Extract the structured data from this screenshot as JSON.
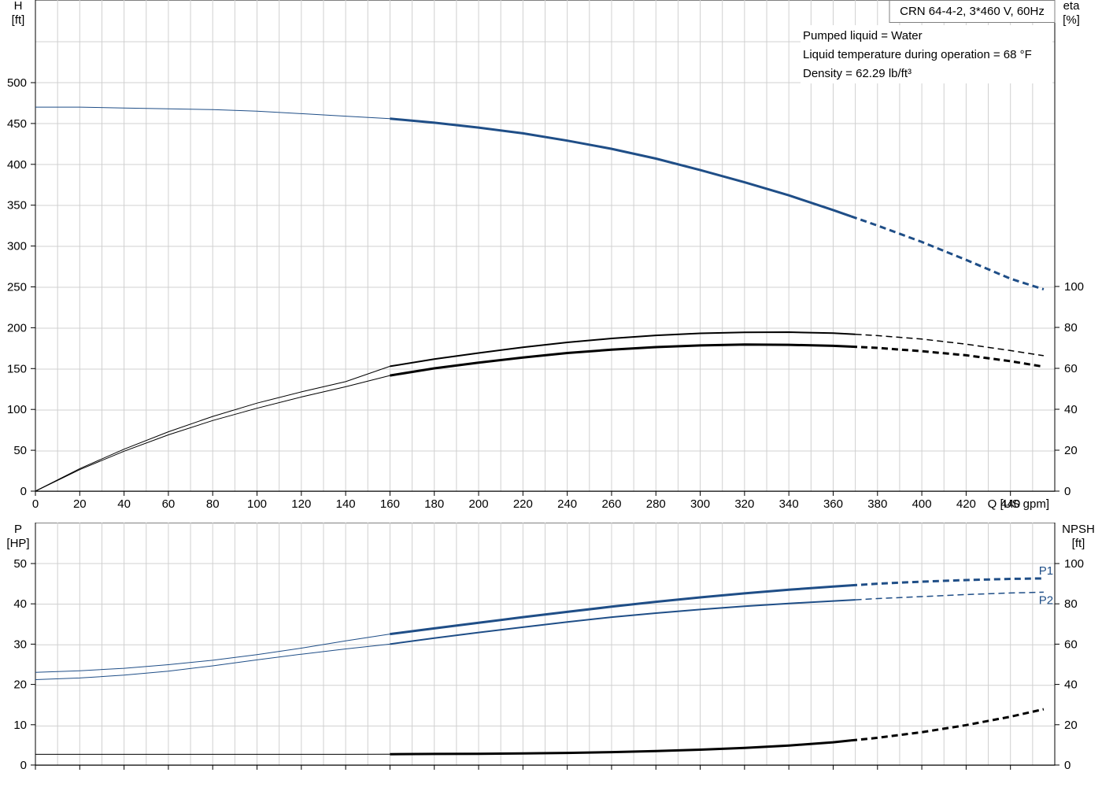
{
  "chart_data": [
    {
      "type": "line",
      "panel": "head-efficiency",
      "title": "CRN 64-4-2, 3*460 V, 60Hz",
      "annotations": [
        "Pumped liquid = Water",
        "Liquid temperature during operation = 68 °F",
        "Density = 62.29 lb/ft³"
      ],
      "xlabel": "Q [US gpm]",
      "xlim": [
        0,
        460
      ],
      "xticks": [
        0,
        20,
        40,
        60,
        80,
        100,
        120,
        140,
        160,
        180,
        200,
        220,
        240,
        260,
        280,
        300,
        320,
        340,
        360,
        380,
        400,
        420,
        440
      ],
      "ylabel_left": [
        "H",
        "[ft]"
      ],
      "ylim_left": [
        0,
        500
      ],
      "yticks_left": [
        0,
        50,
        100,
        150,
        200,
        250,
        300,
        350,
        400,
        450,
        500
      ],
      "ylabel_right": [
        "eta",
        "[%]"
      ],
      "ylim_right": [
        0,
        100
      ],
      "yticks_right": [
        0,
        20,
        40,
        60,
        80,
        100
      ],
      "grid": true,
      "colors": {
        "head": "#1f4e87",
        "eta": "#000000"
      },
      "series": [
        {
          "key": "head",
          "axis": "left",
          "color": "#1f4e87",
          "x": [
            0,
            20,
            40,
            60,
            80,
            100,
            120,
            140,
            160,
            180,
            200,
            220,
            240,
            260,
            280,
            300,
            320,
            340,
            360,
            380,
            400,
            420,
            440,
            455
          ],
          "y": [
            470,
            470,
            469,
            468,
            467,
            465,
            462,
            459,
            456,
            451,
            445,
            438,
            429,
            419,
            407,
            393,
            378,
            362,
            344,
            325,
            305,
            283,
            260,
            247
          ],
          "thin_until": 160,
          "dash_from": 368
        },
        {
          "key": "eta-upper",
          "axis": "right",
          "color": "#000000",
          "x": [
            0,
            20,
            40,
            60,
            80,
            100,
            120,
            140,
            160,
            180,
            200,
            220,
            240,
            260,
            280,
            300,
            320,
            340,
            360,
            380,
            400,
            420,
            440,
            455
          ],
          "y": [
            0,
            11,
            20.5,
            29,
            36.5,
            43,
            48.5,
            53.5,
            61,
            64.5,
            67.5,
            70.3,
            72.7,
            74.6,
            76.1,
            77.1,
            77.6,
            77.7,
            77.2,
            76.0,
            74.3,
            71.8,
            68.7,
            66.2
          ],
          "thin_until": 160,
          "dash_from": 370
        },
        {
          "key": "eta-lower",
          "axis": "right",
          "color": "#000000",
          "x": [
            0,
            20,
            40,
            60,
            80,
            100,
            120,
            140,
            160,
            180,
            200,
            220,
            240,
            260,
            280,
            300,
            320,
            340,
            360,
            380,
            400,
            420,
            440,
            455
          ],
          "y": [
            0,
            10.5,
            19.5,
            27.5,
            34.5,
            40.5,
            46,
            51,
            56.5,
            60,
            62.8,
            65.3,
            67.5,
            69.1,
            70.4,
            71.2,
            71.6,
            71.5,
            71.0,
            70.0,
            68.4,
            66.4,
            63.5,
            60.8
          ],
          "thin_until": 160,
          "dash_from": 368
        }
      ]
    },
    {
      "type": "line",
      "panel": "power-npsh",
      "xlim": [
        0,
        460
      ],
      "ylabel_left": [
        "P",
        "[HP]"
      ],
      "ylim_left": [
        0,
        50
      ],
      "yticks_left": [
        0,
        10,
        20,
        30,
        40,
        50
      ],
      "ylabel_right": [
        "NPSH",
        "[ft]"
      ],
      "ylim_right": [
        0,
        100
      ],
      "yticks_right": [
        0,
        20,
        40,
        60,
        80,
        100
      ],
      "grid": true,
      "colors": {
        "power": "#1f4e87",
        "npsh": "#000000"
      },
      "series": [
        {
          "key": "p1",
          "name": "P1",
          "axis": "left",
          "color": "#1f4e87",
          "x": [
            0,
            20,
            40,
            60,
            80,
            100,
            120,
            140,
            160,
            180,
            200,
            220,
            240,
            260,
            280,
            300,
            320,
            340,
            360,
            380,
            400,
            420,
            440,
            455
          ],
          "y": [
            23.0,
            23.4,
            24.0,
            24.9,
            26.0,
            27.4,
            29.0,
            30.8,
            32.5,
            33.9,
            35.3,
            36.7,
            38.0,
            39.3,
            40.5,
            41.6,
            42.6,
            43.5,
            44.3,
            45.0,
            45.5,
            45.9,
            46.2,
            46.3
          ],
          "thin_until": 160,
          "dash_from": 368
        },
        {
          "key": "p2",
          "name": "P2",
          "axis": "left",
          "color": "#1f4e87",
          "x": [
            0,
            20,
            40,
            60,
            80,
            100,
            120,
            140,
            160,
            180,
            200,
            220,
            240,
            260,
            280,
            300,
            320,
            340,
            360,
            380,
            400,
            420,
            440,
            455
          ],
          "y": [
            21.2,
            21.6,
            22.3,
            23.3,
            24.6,
            26.1,
            27.5,
            28.8,
            30.0,
            31.5,
            32.9,
            34.2,
            35.5,
            36.7,
            37.7,
            38.6,
            39.4,
            40.1,
            40.7,
            41.3,
            41.8,
            42.3,
            42.7,
            42.9
          ],
          "thin_until": 160,
          "dash_from": 370
        },
        {
          "key": "npsh",
          "axis": "right",
          "color": "#000000",
          "x": [
            0,
            40,
            80,
            120,
            140,
            160,
            180,
            200,
            220,
            240,
            260,
            280,
            300,
            320,
            340,
            360,
            380,
            400,
            420,
            440,
            455
          ],
          "y": [
            5.3,
            5.3,
            5.3,
            5.3,
            5.3,
            5.4,
            5.5,
            5.6,
            5.8,
            6.0,
            6.4,
            6.9,
            7.6,
            8.5,
            9.7,
            11.3,
            13.5,
            16.3,
            19.8,
            24.0,
            27.7
          ],
          "thin_until": 160,
          "dash_from": 368
        }
      ]
    }
  ]
}
